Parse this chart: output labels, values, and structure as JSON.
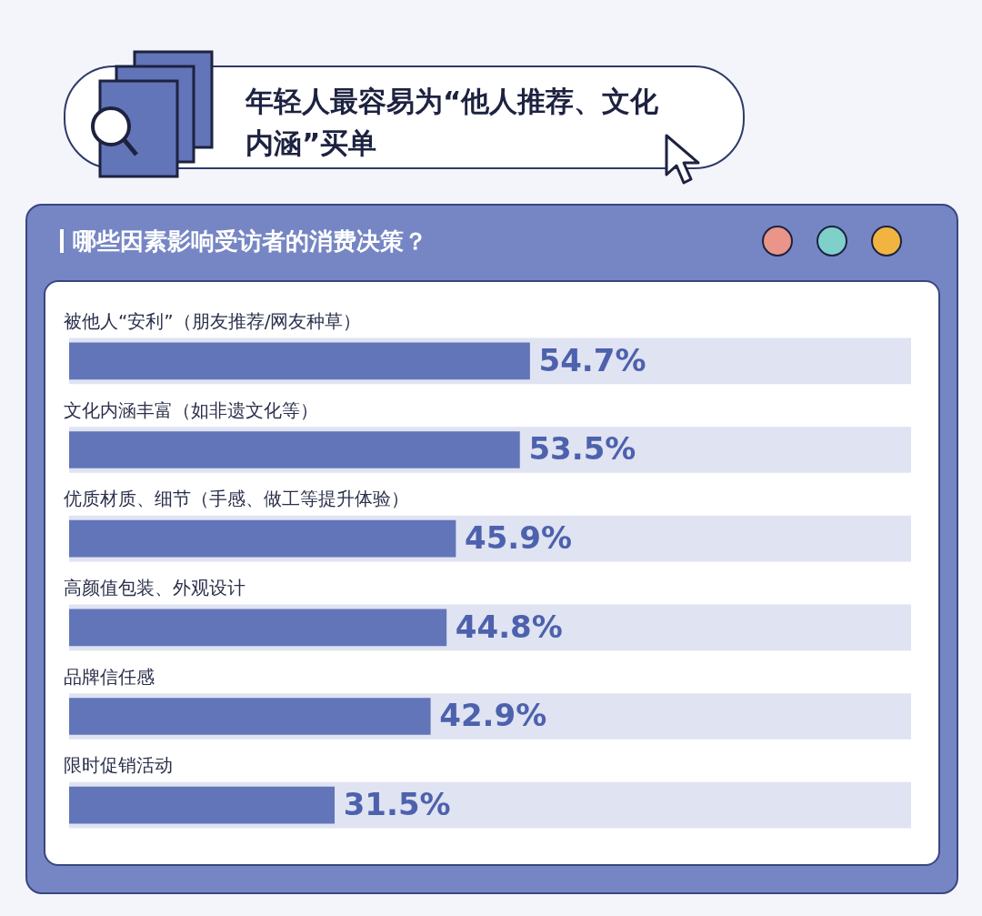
{
  "chart_data": {
    "type": "bar",
    "orientation": "horizontal",
    "title": "年轻人最容易为“他人推荐、文化内涵”买单",
    "subtitle": "哪些因素影响受访者的消费决策？",
    "categories": [
      "被他人“安利”（朋友推荐/网友种草）",
      "文化内涵丰富（如非遗文化等）",
      "优质材质、细节（手感、做工等提升体验）",
      "高颜值包装、外观设计",
      "品牌信任感",
      "限时促销活动"
    ],
    "series": [
      {
        "color": "#6275b8",
        "values": [
          54.7,
          53.5,
          45.9,
          44.8,
          42.9,
          31.5
        ],
        "value_labels": [
          "54.7%",
          "53.5%",
          "45.9%",
          "44.8%",
          "42.9%",
          "31.5%"
        ]
      },
      {
        "color": "#dfe3f2",
        "values": [
          100,
          100,
          100,
          100,
          100,
          100
        ]
      }
    ],
    "xlim": [
      0,
      100
    ],
    "tick_labels": "y",
    "legend": false
  }
}
